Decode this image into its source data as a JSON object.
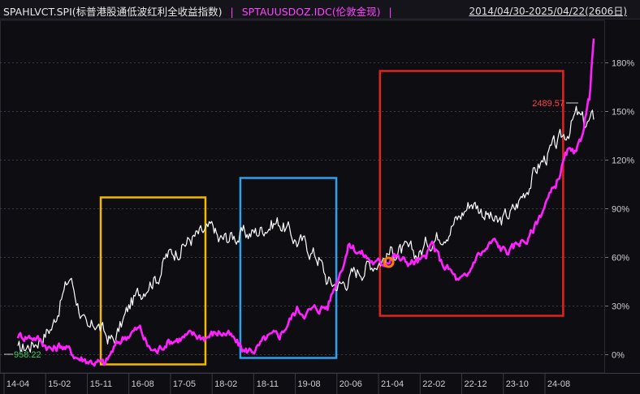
{
  "header": {
    "series1_label": "SPAHLVCT.SPI(标普港股通低波红利全收益指数)",
    "separator": "|",
    "series2_label": "SPTAUUSDOZ.IDC(伦敦金现)",
    "date_range": "2014/04/30-2025/04/22(2606日)"
  },
  "chart_data": {
    "type": "line",
    "x_ticks": [
      "14-04",
      "15-02",
      "15-11",
      "16-08",
      "17-05",
      "18-02",
      "18-11",
      "19-08",
      "20-06",
      "21-04",
      "22-02",
      "22-12",
      "23-10",
      "24-08"
    ],
    "y_ticks": [
      "0%",
      "30%",
      "60%",
      "90%",
      "120%",
      "150%",
      "180%"
    ],
    "ylim": [
      -12,
      197
    ],
    "grid": true,
    "series": [
      {
        "name": "SPAHLVCT.SPI(标普港股通低波红利全收益指数)",
        "color": "#ffffff",
        "start_label": "958.22",
        "points": [
          [
            "14-04",
            2
          ],
          [
            "14-08",
            8
          ],
          [
            "14-12",
            18
          ],
          [
            "15-02",
            35
          ],
          [
            "15-04",
            48
          ],
          [
            "15-06",
            30
          ],
          [
            "15-08",
            12
          ],
          [
            "15-10",
            20
          ],
          [
            "15-12",
            12
          ],
          [
            "16-02",
            8
          ],
          [
            "16-04",
            20
          ],
          [
            "16-06",
            32
          ],
          [
            "16-08",
            38
          ],
          [
            "16-10",
            46
          ],
          [
            "16-12",
            48
          ],
          [
            "17-02",
            60
          ],
          [
            "17-05",
            66
          ],
          [
            "17-08",
            72
          ],
          [
            "17-11",
            75
          ],
          [
            "18-01",
            78
          ],
          [
            "18-02",
            70
          ],
          [
            "18-05",
            73
          ],
          [
            "18-08",
            74
          ],
          [
            "18-11",
            76
          ],
          [
            "19-01",
            80
          ],
          [
            "19-04",
            82
          ],
          [
            "19-06",
            76
          ],
          [
            "19-08",
            70
          ],
          [
            "19-10",
            68
          ],
          [
            "19-12",
            62
          ],
          [
            "20-01",
            60
          ],
          [
            "20-03",
            45
          ],
          [
            "20-06",
            43
          ],
          [
            "20-09",
            50
          ],
          [
            "20-12",
            55
          ],
          [
            "21-04",
            60
          ],
          [
            "21-06",
            64
          ],
          [
            "21-09",
            63
          ],
          [
            "21-12",
            62
          ],
          [
            "22-02",
            70
          ],
          [
            "22-04",
            73
          ],
          [
            "22-06",
            77
          ],
          [
            "22-09",
            84
          ],
          [
            "22-12",
            95
          ],
          [
            "23-03",
            88
          ],
          [
            "23-06",
            80
          ],
          [
            "23-10",
            90
          ],
          [
            "24-01",
            105
          ],
          [
            "24-03",
            115
          ],
          [
            "24-06",
            125
          ],
          [
            "24-08",
            130
          ],
          [
            "24-10",
            138
          ],
          [
            "24-12",
            148
          ],
          [
            "25-02",
            142
          ],
          [
            "25-04",
            145
          ]
        ]
      },
      {
        "name": "SPTAUUSDOZ.IDC(伦敦金现)",
        "color": "#ff22ff",
        "points": [
          [
            "14-04",
            12
          ],
          [
            "14-08",
            11
          ],
          [
            "14-12",
            3
          ],
          [
            "15-02",
            6
          ],
          [
            "15-06",
            -2
          ],
          [
            "15-09",
            -4
          ],
          [
            "15-12",
            -6
          ],
          [
            "16-02",
            4
          ],
          [
            "16-04",
            10
          ],
          [
            "16-06",
            14
          ],
          [
            "16-08",
            16
          ],
          [
            "16-10",
            4
          ],
          [
            "16-12",
            2
          ],
          [
            "17-02",
            8
          ],
          [
            "17-05",
            10
          ],
          [
            "17-08",
            12
          ],
          [
            "17-11",
            11
          ],
          [
            "18-02",
            14
          ],
          [
            "18-04",
            13
          ],
          [
            "18-08",
            2
          ],
          [
            "18-11",
            4
          ],
          [
            "19-01",
            10
          ],
          [
            "19-04",
            12
          ],
          [
            "19-06",
            20
          ],
          [
            "19-08",
            28
          ],
          [
            "19-10",
            26
          ],
          [
            "19-12",
            28
          ],
          [
            "20-03",
            30
          ],
          [
            "20-05",
            45
          ],
          [
            "20-08",
            68
          ],
          [
            "20-10",
            64
          ],
          [
            "20-12",
            60
          ],
          [
            "21-02",
            56
          ],
          [
            "21-04",
            57
          ],
          [
            "21-06",
            62
          ],
          [
            "21-08",
            58
          ],
          [
            "21-10",
            57
          ],
          [
            "22-01",
            58
          ],
          [
            "22-03",
            68
          ],
          [
            "22-05",
            57
          ],
          [
            "22-07",
            52
          ],
          [
            "22-09",
            45
          ],
          [
            "22-11",
            47
          ],
          [
            "23-01",
            61
          ],
          [
            "23-03",
            64
          ],
          [
            "23-05",
            70
          ],
          [
            "23-07",
            65
          ],
          [
            "23-09",
            64
          ],
          [
            "23-11",
            70
          ],
          [
            "24-01",
            71
          ],
          [
            "24-03",
            82
          ],
          [
            "24-05",
            94
          ],
          [
            "24-07",
            102
          ],
          [
            "24-09",
            118
          ],
          [
            "24-10",
            125
          ],
          [
            "24-12",
            122
          ],
          [
            "25-01",
            132
          ],
          [
            "25-02",
            146
          ],
          [
            "25-03",
            158
          ],
          [
            "25-04",
            195
          ]
        ],
        "marker": {
          "x": "21-05",
          "y": 57
        },
        "end_label": "2489.57"
      }
    ],
    "highlight_boxes": [
      {
        "color": "#f5b800",
        "x_from": "15-11",
        "x_to": "17-11",
        "y_from": -6,
        "y_to": 97
      },
      {
        "color": "#2ea0f0",
        "x_from": "18-07",
        "x_to": "20-05",
        "y_from": -2,
        "y_to": 109
      },
      {
        "color": "#e0231e",
        "x_from": "21-03",
        "x_to": "24-09",
        "y_from": 24,
        "y_to": 175
      }
    ]
  }
}
